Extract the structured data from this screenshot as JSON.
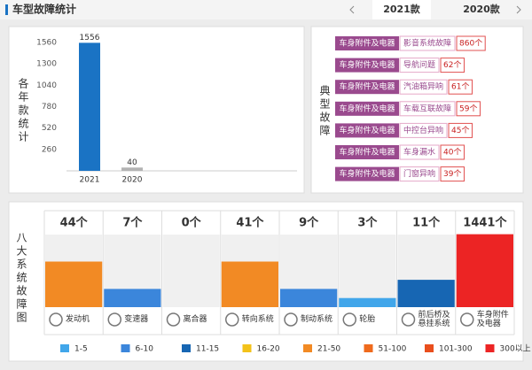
{
  "header": {
    "title": "车型故障统计",
    "tabs": [
      "2021款",
      "2020款"
    ],
    "active_tab": 0
  },
  "chart_data": [
    {
      "type": "bar",
      "title": "各年款统计",
      "categories": [
        "2021",
        "2020"
      ],
      "values": [
        1556,
        40
      ],
      "colors": [
        "#1a73c4",
        "#b3b3b3"
      ],
      "ylim": [
        0,
        1560
      ],
      "yticks": [
        260,
        520,
        780,
        1040,
        1300,
        1560
      ]
    },
    {
      "type": "level-bar",
      "title": "八大系统故障图",
      "categories": [
        "发动机",
        "变速器",
        "离合器",
        "转向系统",
        "制动系统",
        "轮胎",
        "前后桥及\n悬挂系统",
        "车身附件\n及电器"
      ],
      "values": [
        44,
        7,
        0,
        41,
        9,
        3,
        11,
        1441
      ],
      "value_labels": [
        "44个",
        "7个",
        "0个",
        "41个",
        "9个",
        "3个",
        "11个",
        "1441个"
      ],
      "legend": [
        {
          "label": "1-5",
          "color": "#41a6ea"
        },
        {
          "label": "6-10",
          "color": "#3b86db"
        },
        {
          "label": "11-15",
          "color": "#1766b3"
        },
        {
          "label": "16-20",
          "color": "#f3c21a"
        },
        {
          "label": "21-50",
          "color": "#f28a24"
        },
        {
          "label": "51-100",
          "color": "#ef6a1c"
        },
        {
          "label": "101-300",
          "color": "#e94e1d"
        },
        {
          "label": "300以上",
          "color": "#ec2424"
        }
      ]
    }
  ],
  "faults": {
    "title": "典型故障",
    "items": [
      {
        "tag": "车身附件及电器",
        "desc": "影音系统故障",
        "count": "860个"
      },
      {
        "tag": "车身附件及电器",
        "desc": "导航问题",
        "count": "62个"
      },
      {
        "tag": "车身附件及电器",
        "desc": "汽油箱异响",
        "count": "61个"
      },
      {
        "tag": "车身附件及电器",
        "desc": "车载互联故障",
        "count": "59个"
      },
      {
        "tag": "车身附件及电器",
        "desc": "中控台异响",
        "count": "45个"
      },
      {
        "tag": "车身附件及电器",
        "desc": "车身漏水",
        "count": "40个"
      },
      {
        "tag": "车身附件及电器",
        "desc": "门窗异响",
        "count": "39个"
      }
    ]
  }
}
